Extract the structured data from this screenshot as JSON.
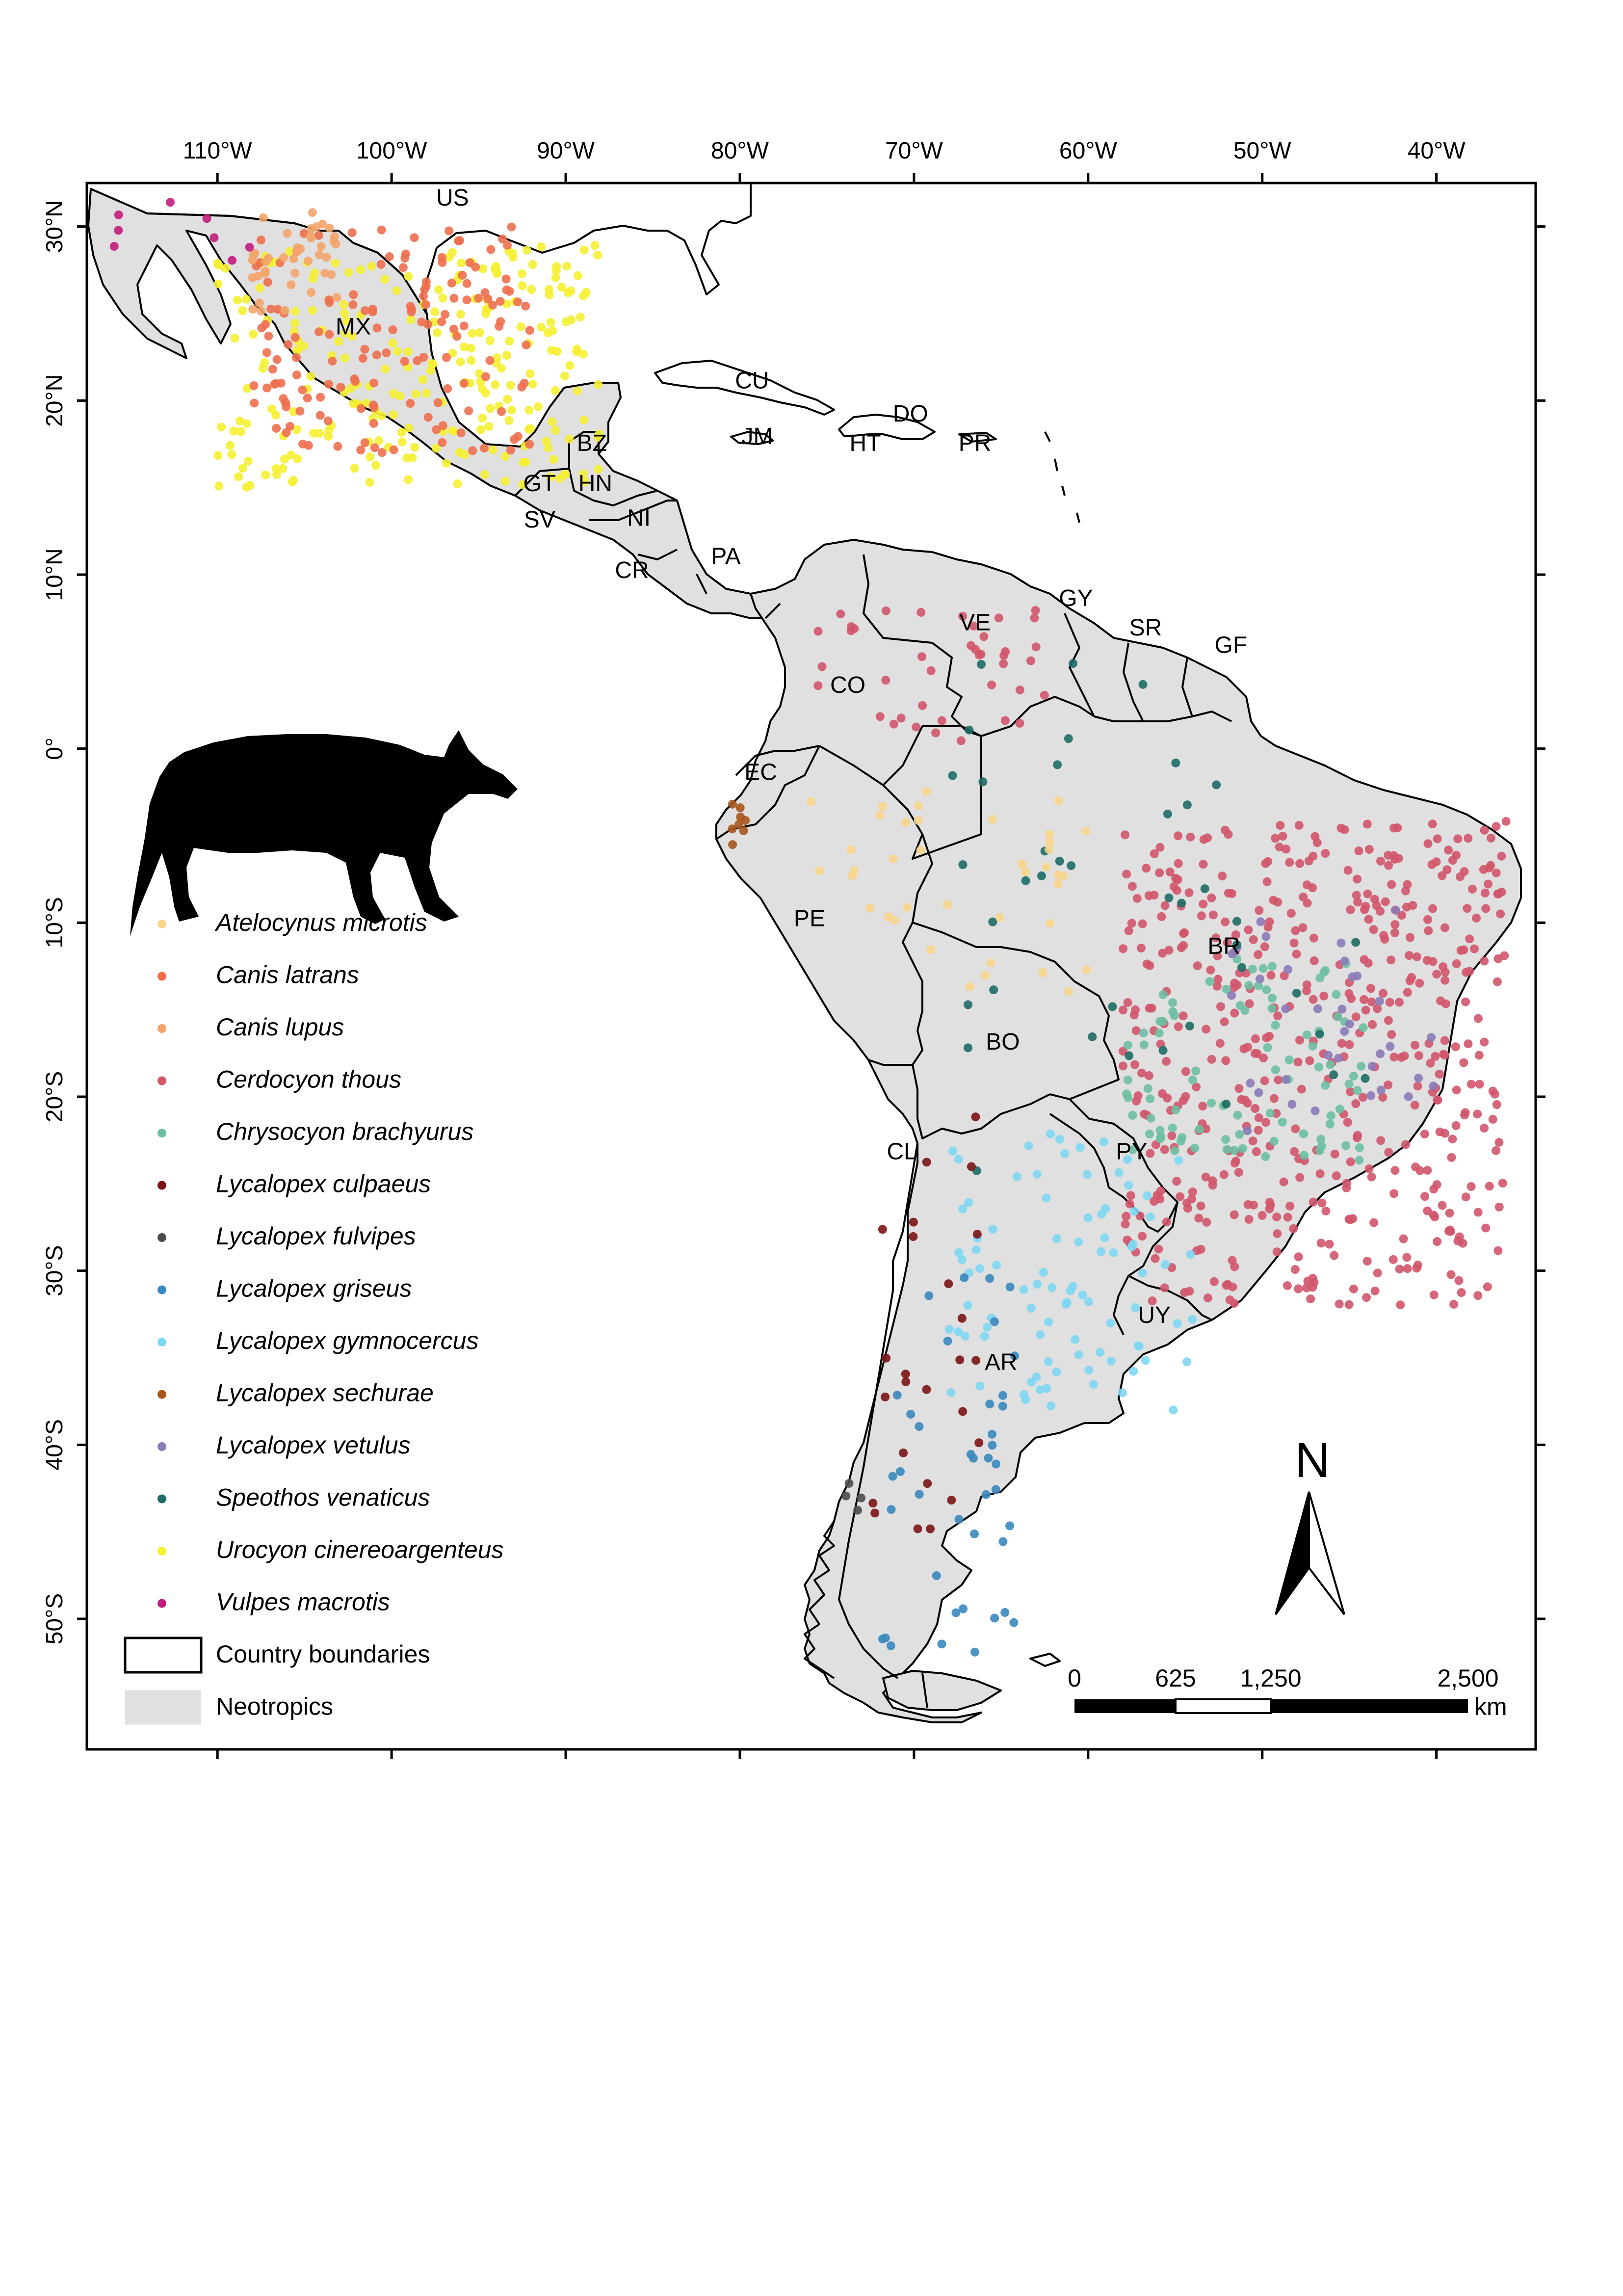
{
  "graticule": {
    "longitudes": [
      {
        "value": -110,
        "label": "110°W"
      },
      {
        "value": -100,
        "label": "100°W"
      },
      {
        "value": -90,
        "label": "90°W"
      },
      {
        "value": -80,
        "label": "80°W"
      },
      {
        "value": -70,
        "label": "70°W"
      },
      {
        "value": -60,
        "label": "60°W"
      },
      {
        "value": -50,
        "label": "50°W"
      },
      {
        "value": -40,
        "label": "40°W"
      }
    ],
    "latitudes": [
      {
        "value": 30,
        "label": "30°N"
      },
      {
        "value": 20,
        "label": "20°N"
      },
      {
        "value": 10,
        "label": "10°N"
      },
      {
        "value": 0,
        "label": "0°"
      },
      {
        "value": -10,
        "label": "10°S"
      },
      {
        "value": -20,
        "label": "20°S"
      },
      {
        "value": -30,
        "label": "30°S"
      },
      {
        "value": -40,
        "label": "40°S"
      },
      {
        "value": -50,
        "label": "50°S"
      }
    ],
    "lon_range": [
      -117.5,
      -34.3
    ],
    "lat_range": [
      -57.5,
      32.5
    ]
  },
  "countries": [
    {
      "code": "US",
      "lon": -96.5,
      "lat": 31.2
    },
    {
      "code": "MX",
      "lon": -102.2,
      "lat": 23.8
    },
    {
      "code": "CU",
      "lon": -79.3,
      "lat": 20.7
    },
    {
      "code": "DO",
      "lon": -70.2,
      "lat": 18.8
    },
    {
      "code": "JM",
      "lon": -79.0,
      "lat": 17.5
    },
    {
      "code": "HT",
      "lon": -72.8,
      "lat": 17.1
    },
    {
      "code": "PR",
      "lon": -66.5,
      "lat": 17.1
    },
    {
      "code": "BZ",
      "lon": -88.5,
      "lat": 17.1
    },
    {
      "code": "GT",
      "lon": -91.5,
      "lat": 14.8
    },
    {
      "code": "HN",
      "lon": -88.3,
      "lat": 14.8
    },
    {
      "code": "SV",
      "lon": -91.5,
      "lat": 12.7
    },
    {
      "code": "NI",
      "lon": -85.8,
      "lat": 12.8
    },
    {
      "code": "CR",
      "lon": -86.2,
      "lat": 9.8
    },
    {
      "code": "PA",
      "lon": -80.8,
      "lat": 10.6
    },
    {
      "code": "VE",
      "lon": -66.5,
      "lat": 6.8
    },
    {
      "code": "GY",
      "lon": -60.7,
      "lat": 8.2
    },
    {
      "code": "SR",
      "lon": -56.7,
      "lat": 6.5
    },
    {
      "code": "GF",
      "lon": -51.8,
      "lat": 5.5
    },
    {
      "code": "CO",
      "lon": -73.8,
      "lat": 3.2
    },
    {
      "code": "EC",
      "lon": -78.8,
      "lat": -1.8
    },
    {
      "code": "PE",
      "lon": -76.0,
      "lat": -10.2
    },
    {
      "code": "BR",
      "lon": -52.2,
      "lat": -11.8
    },
    {
      "code": "BO",
      "lon": -64.9,
      "lat": -17.3
    },
    {
      "code": "CL",
      "lon": -70.7,
      "lat": -23.6
    },
    {
      "code": "PY",
      "lon": -57.5,
      "lat": -23.6
    },
    {
      "code": "UY",
      "lon": -56.2,
      "lat": -33.0
    },
    {
      "code": "AR",
      "lon": -65.0,
      "lat": -35.7
    }
  ],
  "legend": {
    "species": [
      {
        "name": "Atelocynus microtis",
        "color": "#f8d58b"
      },
      {
        "name": "Canis latrans",
        "color": "#ee6f4e"
      },
      {
        "name": "Canis lupus",
        "color": "#f4a46a"
      },
      {
        "name": "Cerdocyon thous",
        "color": "#d2556a"
      },
      {
        "name": "Chrysocyon brachyurus",
        "color": "#6cbfa2"
      },
      {
        "name": "Lycalopex culpaeus",
        "color": "#7b1416"
      },
      {
        "name": "Lycalopex fulvipes",
        "color": "#4d4d4d"
      },
      {
        "name": "Lycalopex griseus",
        "color": "#3a88bf"
      },
      {
        "name": "Lycalopex gymnocercus",
        "color": "#7dd7f2"
      },
      {
        "name": "Lycalopex sechurae",
        "color": "#a8571c"
      },
      {
        "name": "Lycalopex vetulus",
        "color": "#8b7bb8"
      },
      {
        "name": "Speothos venaticus",
        "color": "#1e6b66"
      },
      {
        "name": "Urocyon cinereoargenteus",
        "color": "#f5f032"
      },
      {
        "name": "Vulpes macrotis",
        "color": "#c21c7d"
      }
    ],
    "country_boundaries": "Country boundaries",
    "neotropics": "Neotropics"
  },
  "scale_bar": {
    "ticks": [
      "0",
      "625",
      "1,250",
      "2,500"
    ],
    "unit": "km"
  },
  "north_arrow": {
    "label": "N"
  },
  "silhouette": {
    "icon": "canid-silhouette",
    "species": "Speothos venaticus"
  }
}
